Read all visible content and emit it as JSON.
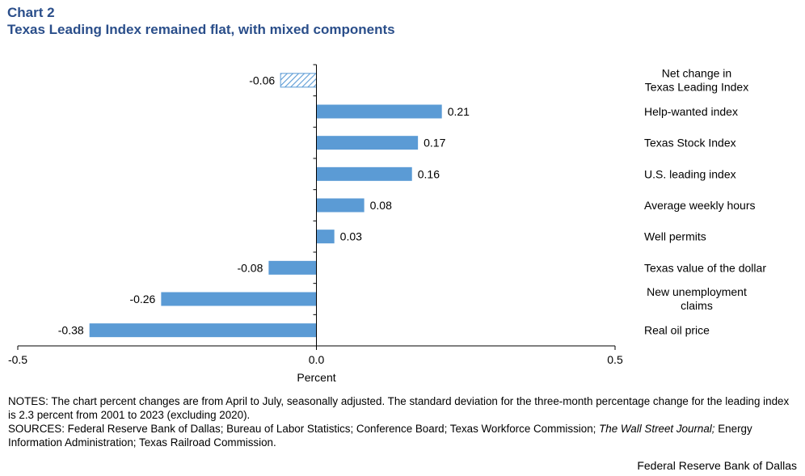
{
  "header": {
    "label": "Chart 2",
    "title": "Texas Leading Index remained flat, with mixed components"
  },
  "chart_data": {
    "type": "bar",
    "orientation": "horizontal",
    "categories": [
      [
        "Net change in",
        "Texas Leading Index"
      ],
      [
        "Help-wanted index"
      ],
      [
        "Texas Stock Index"
      ],
      [
        "U.S. leading index"
      ],
      [
        "Average weekly hours"
      ],
      [
        "Well permits"
      ],
      [
        "Texas value of the dollar"
      ],
      [
        "New unemployment",
        "claims"
      ],
      [
        "Real oil price"
      ]
    ],
    "values": [
      -0.06,
      0.21,
      0.17,
      0.16,
      0.08,
      0.03,
      -0.08,
      -0.26,
      -0.38
    ],
    "value_labels": [
      "-0.06",
      "0.21",
      "0.17",
      "0.16",
      "0.08",
      "0.03",
      "-0.08",
      "-0.26",
      "-0.38"
    ],
    "bar_styles": [
      "hatched",
      "solid",
      "solid",
      "solid",
      "solid",
      "solid",
      "solid",
      "solid",
      "solid"
    ],
    "xlim": [
      -0.5,
      0.5
    ],
    "xticks": [
      -0.5,
      0.0,
      0.5
    ],
    "xtick_labels": [
      "-0.5",
      "0.0",
      "0.5"
    ],
    "xlabel": "Percent",
    "ylabel": "",
    "grid": false,
    "legend": "none",
    "colors": {
      "bar": "#5b9bd5",
      "axis": "#000000"
    }
  },
  "notes": {
    "notes_text": "NOTES: The chart percent changes are from April to July, seasonally adjusted. The standard deviation for the three-month percentage change for the leading index is 2.3 percent from 2001 to 2023 (excluding 2020).",
    "sources_prefix": "SOURCES: Federal Reserve Bank of Dallas; Bureau of Labor Statistics; Conference Board; Texas Workforce Commission;",
    "sources_italic": "The Wall Street Journal;",
    "sources_suffix": "Energy Information Administration; Texas Railroad Commission."
  },
  "footer": {
    "credit": "Federal Reserve Bank of Dallas"
  }
}
